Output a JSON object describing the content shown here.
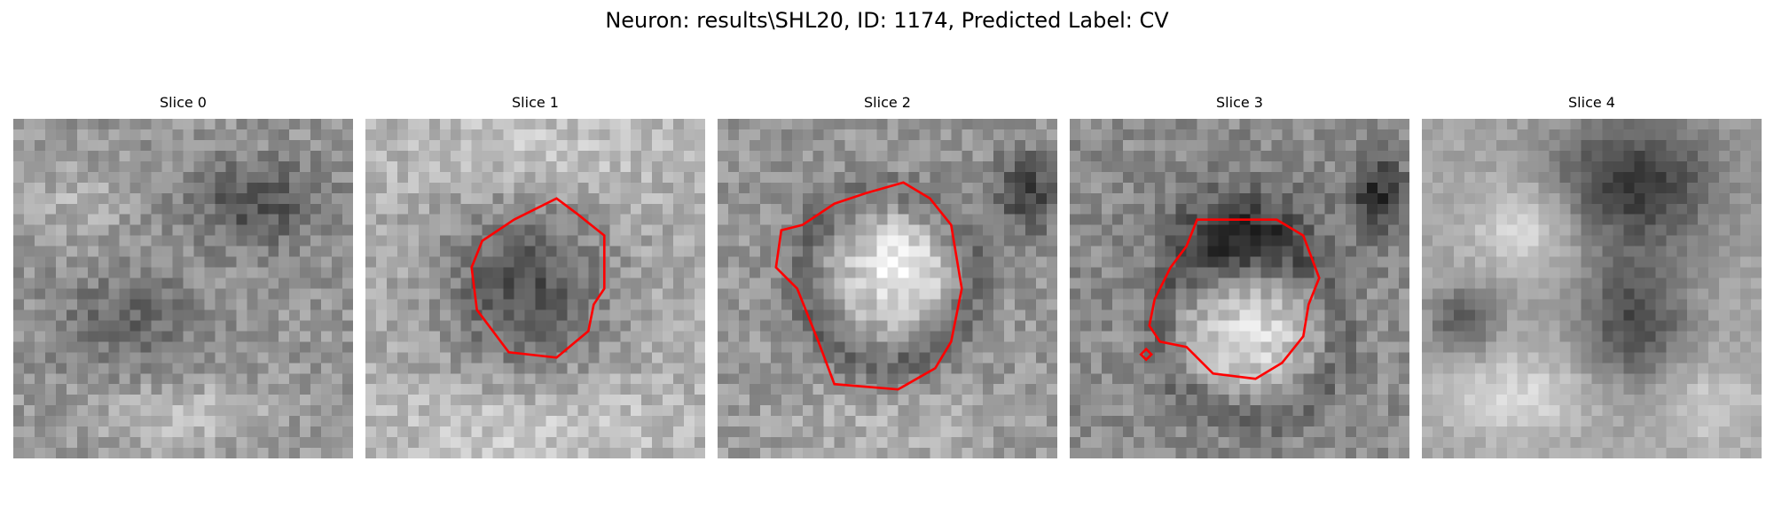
{
  "figure": {
    "suptitle": "Neuron: results\\SHL20, ID: 1174, Predicted Label: CV",
    "contour_color": "#ff0000",
    "colormap": "gray"
  },
  "panels": [
    {
      "title": "Slice 0",
      "has_contour": false
    },
    {
      "title": "Slice 1",
      "has_contour": true
    },
    {
      "title": "Slice 2",
      "has_contour": true
    },
    {
      "title": "Slice 3",
      "has_contour": true
    },
    {
      "title": "Slice 4",
      "has_contour": false
    }
  ]
}
